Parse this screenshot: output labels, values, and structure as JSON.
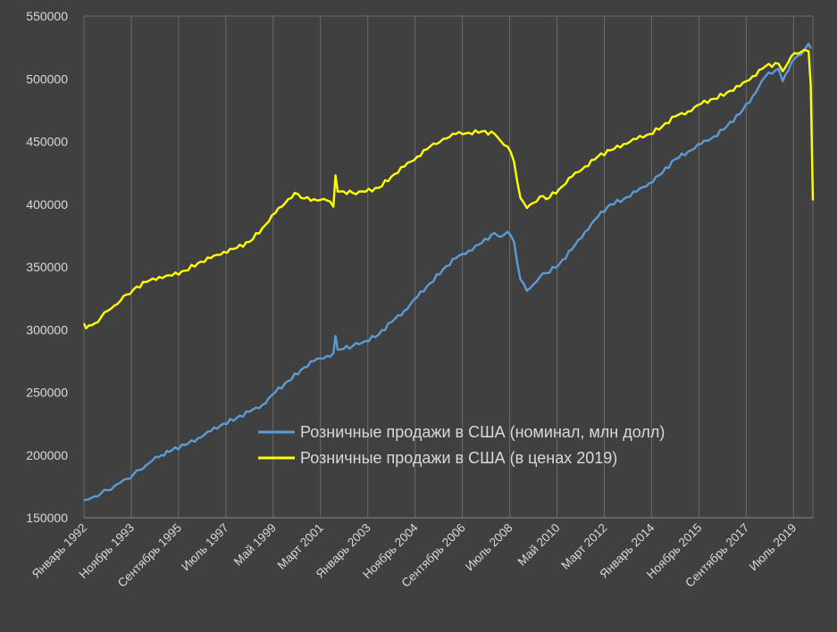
{
  "chart_data": {
    "type": "line",
    "title": "",
    "xlabel": "",
    "ylabel": "",
    "ylim": [
      150000,
      550000
    ],
    "yticks": [
      150000,
      200000,
      250000,
      300000,
      350000,
      400000,
      450000,
      500000,
      550000
    ],
    "ytick_labels": [
      "150000",
      "200000",
      "250000",
      "300000",
      "350000",
      "400000",
      "450000",
      "500000",
      "550000"
    ],
    "xlim": [
      "1992-01",
      "2020-04"
    ],
    "xtick_labels": [
      "Январь 1992",
      "Ноябрь 1993",
      "Сентябрь 1995",
      "Июль 1997",
      "Май 1999",
      "Март 2001",
      "Январь 2003",
      "Ноябрь 2004",
      "Сентябрь 2006",
      "Июль 2008",
      "Май 2010",
      "Март 2012",
      "Январь 2014",
      "Ноябрь 2015",
      "Сентябрь 2017",
      "Июль 2019"
    ],
    "xtick_dates": [
      "1992-01",
      "1993-11",
      "1995-09",
      "1997-07",
      "1999-05",
      "2001-03",
      "2003-01",
      "2004-11",
      "2006-09",
      "2008-07",
      "2010-05",
      "2012-03",
      "2014-01",
      "2015-11",
      "2017-09",
      "2019-07"
    ],
    "grid": "vertical",
    "legend_position": "center",
    "series": [
      {
        "name": "Розничные продажи в США (номинал, млн долл)",
        "color": "#5b9bd5",
        "points": [
          [
            "1992-01",
            164000
          ],
          [
            "1992-03",
            164500
          ],
          [
            "1992-06",
            167000
          ],
          [
            "1992-09",
            169500
          ],
          [
            "1992-12",
            172000
          ],
          [
            "1993-03",
            175000
          ],
          [
            "1993-06",
            178000
          ],
          [
            "1993-09",
            181000
          ],
          [
            "1993-12",
            184500
          ],
          [
            "1994-03",
            188000
          ],
          [
            "1994-06",
            192000
          ],
          [
            "1994-09",
            196000
          ],
          [
            "1995-01",
            200000
          ],
          [
            "1995-06",
            204000
          ],
          [
            "1995-12",
            208000
          ],
          [
            "1996-06",
            213500
          ],
          [
            "1996-12",
            219000
          ],
          [
            "1997-06",
            225000
          ],
          [
            "1997-12",
            229500
          ],
          [
            "1998-06",
            234500
          ],
          [
            "1998-12",
            240000
          ],
          [
            "1999-06",
            250000
          ],
          [
            "1999-12",
            259000
          ],
          [
            "2000-06",
            268000
          ],
          [
            "2000-12",
            275000
          ],
          [
            "2001-06",
            279000
          ],
          [
            "2001-09",
            281000
          ],
          [
            "2001-10",
            295000
          ],
          [
            "2001-11",
            284000
          ],
          [
            "2002-06",
            287000
          ],
          [
            "2002-12",
            291000
          ],
          [
            "2003-06",
            296000
          ],
          [
            "2003-12",
            306000
          ],
          [
            "2004-06",
            315000
          ],
          [
            "2004-12",
            326000
          ],
          [
            "2005-06",
            337000
          ],
          [
            "2005-12",
            348000
          ],
          [
            "2006-06",
            357000
          ],
          [
            "2006-12",
            363000
          ],
          [
            "2007-06",
            369000
          ],
          [
            "2007-12",
            377000
          ],
          [
            "2008-03",
            374000
          ],
          [
            "2008-06",
            378000
          ],
          [
            "2008-09",
            370000
          ],
          [
            "2008-12",
            340000
          ],
          [
            "2009-03",
            331000
          ],
          [
            "2009-06",
            336000
          ],
          [
            "2009-09",
            342000
          ],
          [
            "2009-12",
            345000
          ],
          [
            "2010-06",
            352000
          ],
          [
            "2010-12",
            364000
          ],
          [
            "2011-06",
            378000
          ],
          [
            "2011-12",
            390000
          ],
          [
            "2012-06",
            400000
          ],
          [
            "2012-12",
            404000
          ],
          [
            "2013-06",
            410000
          ],
          [
            "2013-12",
            417000
          ],
          [
            "2014-06",
            425000
          ],
          [
            "2014-12",
            436000
          ],
          [
            "2015-06",
            442000
          ],
          [
            "2015-12",
            448000
          ],
          [
            "2016-06",
            454000
          ],
          [
            "2016-12",
            462000
          ],
          [
            "2017-06",
            472000
          ],
          [
            "2017-12",
            486000
          ],
          [
            "2018-06",
            502000
          ],
          [
            "2018-12",
            508000
          ],
          [
            "2019-02",
            498000
          ],
          [
            "2019-06",
            513000
          ],
          [
            "2019-12",
            523000
          ],
          [
            "2020-02",
            528000
          ],
          [
            "2020-03",
            524000
          ]
        ]
      },
      {
        "name": "Розничные продажи в США (в ценах 2019)",
        "color": "#ffff00",
        "points": [
          [
            "1992-01",
            305000
          ],
          [
            "1992-02",
            301000
          ],
          [
            "1992-06",
            305000
          ],
          [
            "1992-09",
            310000
          ],
          [
            "1992-12",
            315000
          ],
          [
            "1993-03",
            319000
          ],
          [
            "1993-06",
            323000
          ],
          [
            "1993-09",
            328000
          ],
          [
            "1993-12",
            332000
          ],
          [
            "1994-06",
            338000
          ],
          [
            "1994-12",
            342000
          ],
          [
            "1995-06",
            343000
          ],
          [
            "1995-12",
            347000
          ],
          [
            "1996-06",
            353000
          ],
          [
            "1996-12",
            357000
          ],
          [
            "1997-06",
            362000
          ],
          [
            "1997-12",
            365000
          ],
          [
            "1998-06",
            370000
          ],
          [
            "1998-12",
            381000
          ],
          [
            "1999-06",
            393000
          ],
          [
            "1999-12",
            404000
          ],
          [
            "2000-03",
            409000
          ],
          [
            "2000-06",
            405000
          ],
          [
            "2000-12",
            404000
          ],
          [
            "2001-06",
            403000
          ],
          [
            "2001-09",
            398000
          ],
          [
            "2001-10",
            423000
          ],
          [
            "2001-11",
            410000
          ],
          [
            "2002-06",
            409000
          ],
          [
            "2002-12",
            410000
          ],
          [
            "2003-06",
            413000
          ],
          [
            "2003-12",
            422000
          ],
          [
            "2004-06",
            430000
          ],
          [
            "2004-12",
            438000
          ],
          [
            "2005-06",
            446000
          ],
          [
            "2005-09",
            448000
          ],
          [
            "2005-12",
            452000
          ],
          [
            "2006-06",
            456000
          ],
          [
            "2006-12",
            457000
          ],
          [
            "2007-06",
            458000
          ],
          [
            "2007-12",
            456000
          ],
          [
            "2008-03",
            450000
          ],
          [
            "2008-06",
            446000
          ],
          [
            "2008-09",
            434000
          ],
          [
            "2008-12",
            405000
          ],
          [
            "2009-03",
            397000
          ],
          [
            "2009-06",
            401000
          ],
          [
            "2009-09",
            406000
          ],
          [
            "2009-12",
            404000
          ],
          [
            "2010-06",
            412000
          ],
          [
            "2010-12",
            422000
          ],
          [
            "2011-06",
            430000
          ],
          [
            "2011-12",
            438000
          ],
          [
            "2012-06",
            443000
          ],
          [
            "2012-12",
            448000
          ],
          [
            "2013-06",
            452000
          ],
          [
            "2013-12",
            456000
          ],
          [
            "2014-06",
            462000
          ],
          [
            "2014-12",
            470000
          ],
          [
            "2015-06",
            474000
          ],
          [
            "2015-12",
            480000
          ],
          [
            "2016-06",
            484000
          ],
          [
            "2016-12",
            489000
          ],
          [
            "2017-06",
            494000
          ],
          [
            "2017-12",
            502000
          ],
          [
            "2018-06",
            510000
          ],
          [
            "2018-12",
            512000
          ],
          [
            "2019-02",
            506000
          ],
          [
            "2019-06",
            518000
          ],
          [
            "2019-12",
            523000
          ],
          [
            "2020-02",
            522000
          ],
          [
            "2020-03",
            495000
          ],
          [
            "2020-04",
            403000
          ]
        ]
      }
    ]
  }
}
